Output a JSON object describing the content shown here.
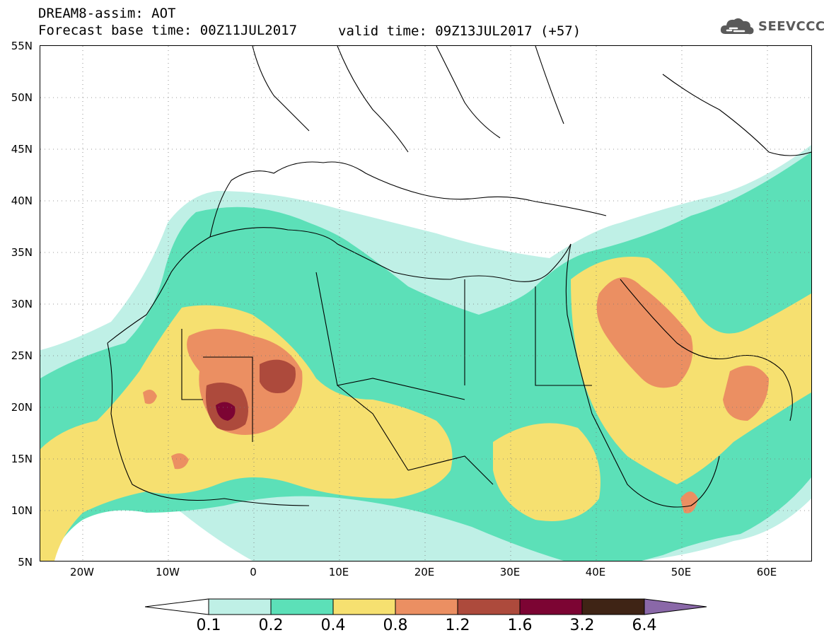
{
  "header": {
    "line1": "DREAM8-assim: AOT",
    "line2_left": "Forecast base time: 00Z11JUL2017",
    "line2_right": "valid time: 09Z13JUL2017 (+57)"
  },
  "logo": {
    "text": "SEEVCCC",
    "icon": "cloud-icon"
  },
  "map": {
    "lat_labels": [
      "55N",
      "50N",
      "45N",
      "40N",
      "35N",
      "30N",
      "25N",
      "20N",
      "15N",
      "10N",
      "5N"
    ],
    "lon_labels": [
      "20W",
      "10W",
      "0",
      "10E",
      "20E",
      "30E",
      "40E",
      "50E",
      "60E"
    ]
  },
  "colorbar": {
    "colors": [
      "#ffffff",
      "#bff0e6",
      "#5ce0b8",
      "#f6e070",
      "#eb8f62",
      "#ad4a3c",
      "#7c0433",
      "#3f2415",
      "#8a68a8"
    ],
    "labels": [
      "0.1",
      "0.2",
      "0.4",
      "0.8",
      "1.2",
      "1.6",
      "3.2",
      "6.4"
    ]
  }
}
